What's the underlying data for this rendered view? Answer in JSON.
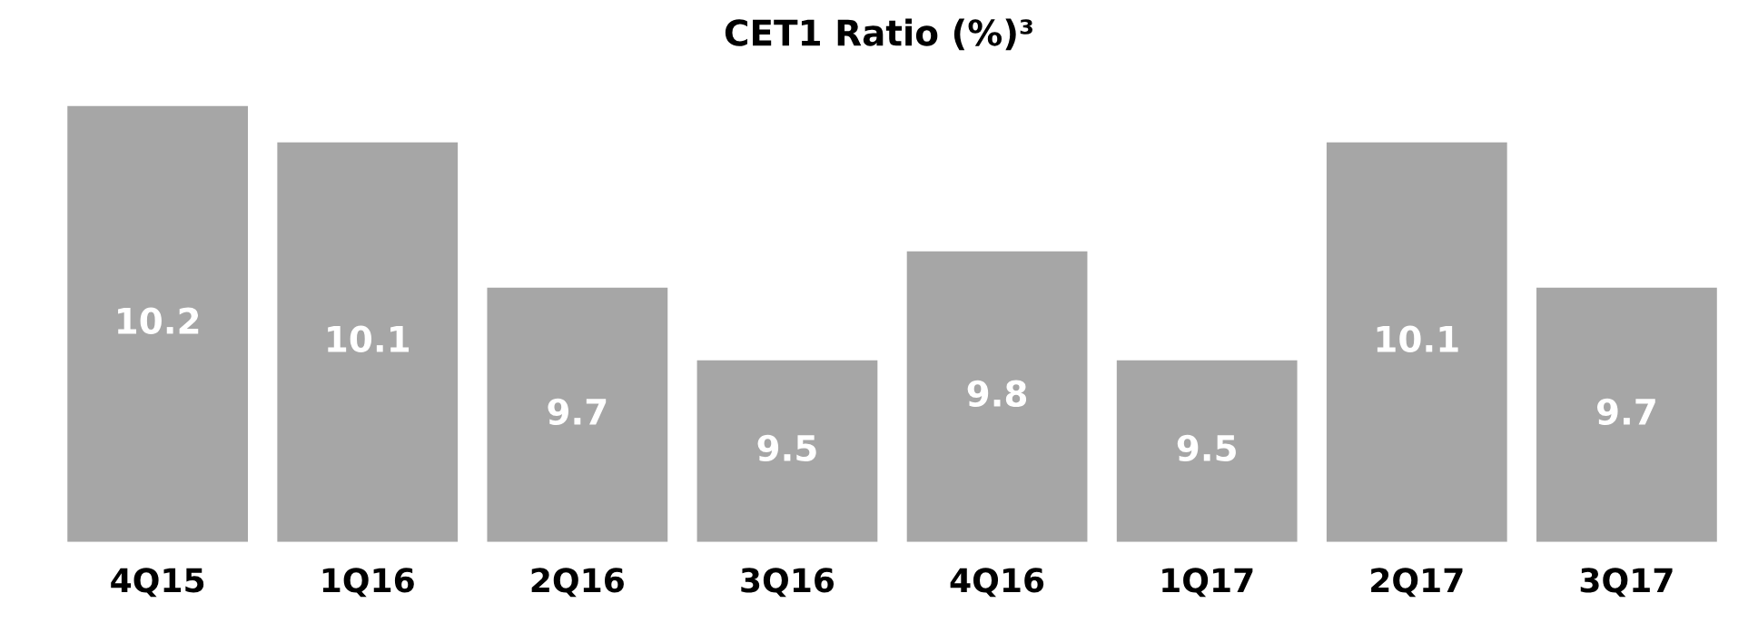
{
  "chart_data": {
    "type": "bar",
    "title": "CET1 Ratio (%)³",
    "categories": [
      "4Q15",
      "1Q16",
      "2Q16",
      "3Q16",
      "4Q16",
      "1Q17",
      "2Q17",
      "3Q17"
    ],
    "values": [
      10.2,
      10.1,
      9.7,
      9.5,
      9.8,
      9.5,
      10.1,
      9.7
    ],
    "color": "#a6a6a6",
    "ylim": [
      9.0,
      10.2
    ],
    "data_labels": true,
    "grid": false,
    "legend": false
  }
}
